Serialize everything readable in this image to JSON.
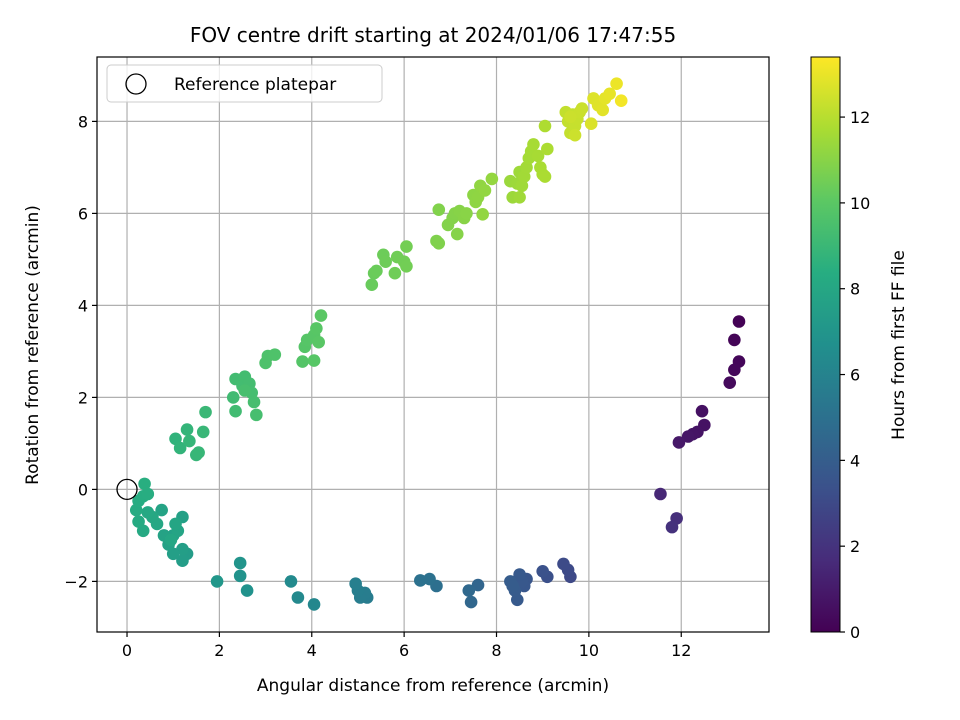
{
  "chart_data": {
    "type": "scatter",
    "title": "FOV centre drift starting at 2024/01/06 17:47:55",
    "xlabel": "Angular distance from reference (arcmin)",
    "ylabel": "Rotation from reference (arcmin)",
    "xlim": [
      -0.65,
      13.9
    ],
    "ylim": [
      -3.1,
      9.4
    ],
    "xticks": [
      0,
      2,
      4,
      6,
      8,
      10,
      12
    ],
    "yticks": [
      -2,
      0,
      2,
      4,
      6,
      8
    ],
    "grid": true,
    "legend": {
      "position": "top-left",
      "entries": [
        "Reference platepar"
      ]
    },
    "reference_point": {
      "x": 0,
      "y": 0
    },
    "colorbar": {
      "label": "Hours from first FF file",
      "range": [
        0,
        13.4
      ],
      "ticks": [
        0,
        2,
        4,
        6,
        8,
        10,
        12
      ],
      "colormap": "viridis"
    },
    "points": [
      {
        "x": 13.25,
        "y": 3.65,
        "c": 0.05
      },
      {
        "x": 13.15,
        "y": 3.25,
        "c": 0.15
      },
      {
        "x": 13.25,
        "y": 2.78,
        "c": 0.2
      },
      {
        "x": 13.15,
        "y": 2.6,
        "c": 0.25
      },
      {
        "x": 13.05,
        "y": 2.32,
        "c": 0.35
      },
      {
        "x": 12.45,
        "y": 1.7,
        "c": 0.6
      },
      {
        "x": 12.5,
        "y": 1.4,
        "c": 0.65
      },
      {
        "x": 12.35,
        "y": 1.25,
        "c": 0.7
      },
      {
        "x": 12.25,
        "y": 1.2,
        "c": 0.75
      },
      {
        "x": 12.15,
        "y": 1.15,
        "c": 0.8
      },
      {
        "x": 11.95,
        "y": 1.02,
        "c": 0.9
      },
      {
        "x": 11.55,
        "y": -0.1,
        "c": 1.5
      },
      {
        "x": 11.9,
        "y": -0.63,
        "c": 1.8
      },
      {
        "x": 11.8,
        "y": -0.82,
        "c": 1.9
      },
      {
        "x": 9.6,
        "y": -1.9,
        "c": 3.0
      },
      {
        "x": 9.55,
        "y": -1.75,
        "c": 3.05
      },
      {
        "x": 9.45,
        "y": -1.62,
        "c": 3.1
      },
      {
        "x": 9.1,
        "y": -1.9,
        "c": 3.3
      },
      {
        "x": 9.0,
        "y": -1.78,
        "c": 3.4
      },
      {
        "x": 8.65,
        "y": -1.95,
        "c": 3.6
      },
      {
        "x": 8.6,
        "y": -2.1,
        "c": 3.65
      },
      {
        "x": 8.55,
        "y": -2.0,
        "c": 3.7
      },
      {
        "x": 8.5,
        "y": -1.85,
        "c": 3.75
      },
      {
        "x": 8.45,
        "y": -2.4,
        "c": 3.8
      },
      {
        "x": 8.4,
        "y": -2.2,
        "c": 3.85
      },
      {
        "x": 8.3,
        "y": -2.0,
        "c": 3.9
      },
      {
        "x": 8.35,
        "y": -2.1,
        "c": 3.95
      },
      {
        "x": 7.6,
        "y": -2.08,
        "c": 4.4
      },
      {
        "x": 7.45,
        "y": -2.45,
        "c": 4.5
      },
      {
        "x": 7.4,
        "y": -2.2,
        "c": 4.55
      },
      {
        "x": 6.7,
        "y": -2.1,
        "c": 4.9
      },
      {
        "x": 6.55,
        "y": -1.95,
        "c": 5.0
      },
      {
        "x": 6.35,
        "y": -1.98,
        "c": 5.05
      },
      {
        "x": 5.2,
        "y": -2.35,
        "c": 5.6
      },
      {
        "x": 5.15,
        "y": -2.25,
        "c": 5.65
      },
      {
        "x": 5.05,
        "y": -2.35,
        "c": 5.7
      },
      {
        "x": 5.0,
        "y": -2.2,
        "c": 5.75
      },
      {
        "x": 4.95,
        "y": -2.05,
        "c": 5.8
      },
      {
        "x": 4.05,
        "y": -2.5,
        "c": 6.2
      },
      {
        "x": 3.7,
        "y": -2.35,
        "c": 6.3
      },
      {
        "x": 3.55,
        "y": -2.0,
        "c": 6.4
      },
      {
        "x": 2.6,
        "y": -2.2,
        "c": 6.8
      },
      {
        "x": 2.45,
        "y": -1.88,
        "c": 6.9
      },
      {
        "x": 2.45,
        "y": -1.6,
        "c": 6.95
      },
      {
        "x": 1.95,
        "y": -2.0,
        "c": 7.1
      },
      {
        "x": 1.3,
        "y": -1.4,
        "c": 7.4
      },
      {
        "x": 1.2,
        "y": -1.55,
        "c": 7.45
      },
      {
        "x": 1.2,
        "y": -1.3,
        "c": 7.5
      },
      {
        "x": 1.0,
        "y": -1.4,
        "c": 7.55
      },
      {
        "x": 1.0,
        "y": -1.0,
        "c": 7.6
      },
      {
        "x": 1.2,
        "y": -0.6,
        "c": 7.65
      },
      {
        "x": 0.9,
        "y": -1.2,
        "c": 7.7
      },
      {
        "x": 0.8,
        "y": -1.0,
        "c": 7.75
      },
      {
        "x": 0.75,
        "y": -0.45,
        "c": 7.8
      },
      {
        "x": 1.1,
        "y": -0.9,
        "c": 7.85
      },
      {
        "x": 1.05,
        "y": -0.75,
        "c": 7.9
      },
      {
        "x": 0.95,
        "y": -1.1,
        "c": 7.95
      },
      {
        "x": 0.65,
        "y": -0.75,
        "c": 8.0
      },
      {
        "x": 0.55,
        "y": -0.6,
        "c": 8.05
      },
      {
        "x": 0.45,
        "y": -0.5,
        "c": 8.1
      },
      {
        "x": 0.35,
        "y": -0.9,
        "c": 8.15
      },
      {
        "x": 0.25,
        "y": -0.7,
        "c": 8.2
      },
      {
        "x": 0.2,
        "y": -0.45,
        "c": 8.25
      },
      {
        "x": 0.25,
        "y": -0.25,
        "c": 8.3
      },
      {
        "x": 0.35,
        "y": -0.15,
        "c": 8.35
      },
      {
        "x": 0.45,
        "y": -0.1,
        "c": 8.4
      },
      {
        "x": 0.38,
        "y": 0.12,
        "c": 8.45
      },
      {
        "x": 1.05,
        "y": 1.1,
        "c": 8.7
      },
      {
        "x": 1.15,
        "y": 0.9,
        "c": 8.75
      },
      {
        "x": 1.3,
        "y": 1.3,
        "c": 8.8
      },
      {
        "x": 1.35,
        "y": 1.05,
        "c": 8.85
      },
      {
        "x": 1.5,
        "y": 0.75,
        "c": 8.9
      },
      {
        "x": 1.55,
        "y": 0.8,
        "c": 8.92
      },
      {
        "x": 1.65,
        "y": 1.25,
        "c": 8.95
      },
      {
        "x": 1.7,
        "y": 1.68,
        "c": 9.0
      },
      {
        "x": 2.3,
        "y": 2.0,
        "c": 9.2
      },
      {
        "x": 2.35,
        "y": 1.7,
        "c": 9.22
      },
      {
        "x": 2.35,
        "y": 2.4,
        "c": 9.25
      },
      {
        "x": 2.5,
        "y": 2.25,
        "c": 9.28
      },
      {
        "x": 2.55,
        "y": 2.45,
        "c": 9.3
      },
      {
        "x": 2.65,
        "y": 2.3,
        "c": 9.32
      },
      {
        "x": 2.7,
        "y": 2.1,
        "c": 9.35
      },
      {
        "x": 2.75,
        "y": 1.9,
        "c": 9.38
      },
      {
        "x": 2.8,
        "y": 1.62,
        "c": 9.4
      },
      {
        "x": 2.55,
        "y": 2.15,
        "c": 9.42
      },
      {
        "x": 3.0,
        "y": 2.75,
        "c": 9.6
      },
      {
        "x": 3.05,
        "y": 2.9,
        "c": 9.62
      },
      {
        "x": 3.2,
        "y": 2.93,
        "c": 9.65
      },
      {
        "x": 3.8,
        "y": 2.78,
        "c": 9.8
      },
      {
        "x": 3.85,
        "y": 3.1,
        "c": 9.82
      },
      {
        "x": 3.9,
        "y": 3.25,
        "c": 9.85
      },
      {
        "x": 4.05,
        "y": 3.35,
        "c": 9.88
      },
      {
        "x": 4.05,
        "y": 2.8,
        "c": 9.9
      },
      {
        "x": 4.1,
        "y": 3.5,
        "c": 9.92
      },
      {
        "x": 4.15,
        "y": 3.2,
        "c": 9.95
      },
      {
        "x": 4.2,
        "y": 3.78,
        "c": 9.98
      },
      {
        "x": 5.3,
        "y": 4.45,
        "c": 10.3
      },
      {
        "x": 5.35,
        "y": 4.7,
        "c": 10.32
      },
      {
        "x": 5.4,
        "y": 4.75,
        "c": 10.35
      },
      {
        "x": 5.55,
        "y": 5.1,
        "c": 10.4
      },
      {
        "x": 5.6,
        "y": 4.95,
        "c": 10.42
      },
      {
        "x": 5.8,
        "y": 4.7,
        "c": 10.45
      },
      {
        "x": 5.85,
        "y": 5.05,
        "c": 10.48
      },
      {
        "x": 6.0,
        "y": 4.95,
        "c": 10.5
      },
      {
        "x": 6.05,
        "y": 4.85,
        "c": 10.52
      },
      {
        "x": 6.05,
        "y": 5.28,
        "c": 10.55
      },
      {
        "x": 6.7,
        "y": 5.4,
        "c": 10.8
      },
      {
        "x": 6.75,
        "y": 5.35,
        "c": 10.82
      },
      {
        "x": 6.75,
        "y": 6.08,
        "c": 10.85
      },
      {
        "x": 6.95,
        "y": 5.75,
        "c": 10.88
      },
      {
        "x": 7.05,
        "y": 5.9,
        "c": 10.9
      },
      {
        "x": 7.1,
        "y": 6.0,
        "c": 10.92
      },
      {
        "x": 7.15,
        "y": 5.55,
        "c": 10.95
      },
      {
        "x": 7.2,
        "y": 6.05,
        "c": 10.97
      },
      {
        "x": 7.3,
        "y": 5.9,
        "c": 11.0
      },
      {
        "x": 7.35,
        "y": 6.0,
        "c": 11.02
      },
      {
        "x": 7.5,
        "y": 6.4,
        "c": 11.1
      },
      {
        "x": 7.55,
        "y": 6.25,
        "c": 11.12
      },
      {
        "x": 7.6,
        "y": 6.35,
        "c": 11.15
      },
      {
        "x": 7.65,
        "y": 6.6,
        "c": 11.18
      },
      {
        "x": 7.7,
        "y": 5.98,
        "c": 11.2
      },
      {
        "x": 7.75,
        "y": 6.5,
        "c": 11.22
      },
      {
        "x": 7.9,
        "y": 6.75,
        "c": 11.25
      },
      {
        "x": 8.3,
        "y": 6.7,
        "c": 11.4
      },
      {
        "x": 8.35,
        "y": 6.35,
        "c": 11.42
      },
      {
        "x": 8.45,
        "y": 6.65,
        "c": 11.45
      },
      {
        "x": 8.5,
        "y": 6.9,
        "c": 11.47
      },
      {
        "x": 8.5,
        "y": 6.35,
        "c": 11.5
      },
      {
        "x": 8.55,
        "y": 6.6,
        "c": 11.52
      },
      {
        "x": 8.6,
        "y": 6.8,
        "c": 11.55
      },
      {
        "x": 8.65,
        "y": 7.0,
        "c": 11.57
      },
      {
        "x": 8.7,
        "y": 7.2,
        "c": 11.6
      },
      {
        "x": 8.75,
        "y": 7.35,
        "c": 11.62
      },
      {
        "x": 8.8,
        "y": 7.5,
        "c": 11.65
      },
      {
        "x": 8.9,
        "y": 7.25,
        "c": 11.67
      },
      {
        "x": 8.95,
        "y": 7.0,
        "c": 11.7
      },
      {
        "x": 9.0,
        "y": 6.85,
        "c": 11.72
      },
      {
        "x": 9.05,
        "y": 6.8,
        "c": 11.74
      },
      {
        "x": 9.1,
        "y": 7.4,
        "c": 11.76
      },
      {
        "x": 9.05,
        "y": 7.9,
        "c": 11.8
      },
      {
        "x": 9.5,
        "y": 8.2,
        "c": 12.2
      },
      {
        "x": 9.55,
        "y": 8.0,
        "c": 12.22
      },
      {
        "x": 9.6,
        "y": 7.75,
        "c": 12.25
      },
      {
        "x": 9.65,
        "y": 8.15,
        "c": 12.27
      },
      {
        "x": 9.7,
        "y": 7.9,
        "c": 12.3
      },
      {
        "x": 9.75,
        "y": 8.05,
        "c": 12.32
      },
      {
        "x": 9.8,
        "y": 8.2,
        "c": 12.35
      },
      {
        "x": 9.85,
        "y": 8.28,
        "c": 12.37
      },
      {
        "x": 9.6,
        "y": 8.1,
        "c": 12.4
      },
      {
        "x": 9.7,
        "y": 7.7,
        "c": 12.42
      },
      {
        "x": 10.05,
        "y": 7.95,
        "c": 12.7
      },
      {
        "x": 10.1,
        "y": 8.5,
        "c": 12.75
      },
      {
        "x": 10.2,
        "y": 8.35,
        "c": 12.8
      },
      {
        "x": 10.3,
        "y": 8.25,
        "c": 12.85
      },
      {
        "x": 10.35,
        "y": 8.5,
        "c": 12.9
      },
      {
        "x": 10.45,
        "y": 8.6,
        "c": 12.95
      },
      {
        "x": 10.6,
        "y": 8.82,
        "c": 13.05
      },
      {
        "x": 10.7,
        "y": 8.45,
        "c": 13.2
      }
    ]
  }
}
